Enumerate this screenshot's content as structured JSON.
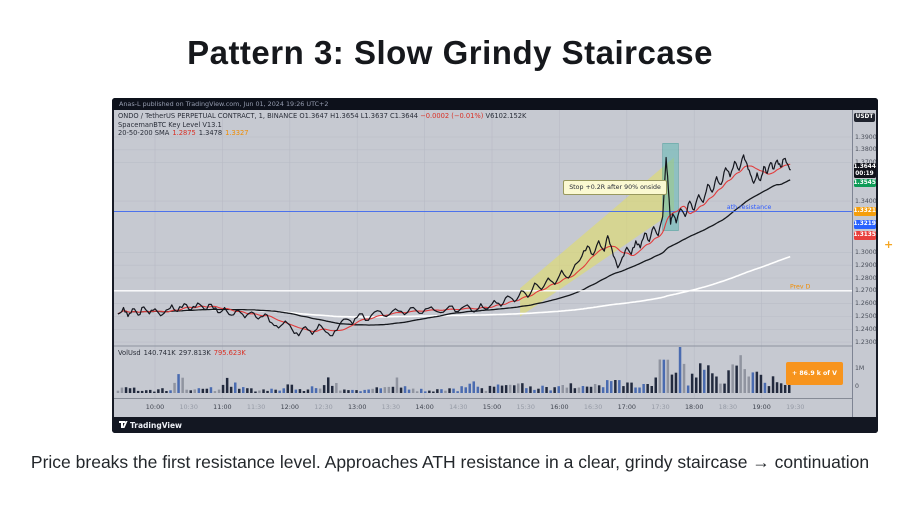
{
  "slide": {
    "title": "Pattern 3: Slow Grindy Staircase",
    "caption": "Price breaks the first resistance level. Approaches ATH resistance in a clear, grindy staircase → continuation"
  },
  "chart_header": {
    "publish_line": "Anas-L published on TradingView.com, Jun 01, 2024 19:26 UTC+2"
  },
  "legend": {
    "symbol_line": "ONDO / TetherUS PERPETUAL CONTRACT, 1, BINANCE",
    "ohlc": "O1.3647  H1.3654  L1.3637  C1.3644",
    "change": "−0.0002 (−0.01%)",
    "volume_readout": "V6102.152K",
    "indicator1": "SpacemanBTC Key Level V13.1",
    "indicator2_label": "20-50-200 SMA",
    "sma1": "1.2875",
    "sma2": "1.3478",
    "sma3": "1.3327"
  },
  "volume_legend": {
    "label": "VolUsd",
    "v1": "140.741K",
    "v2": "297.813K",
    "v3": "795.623K"
  },
  "price_scale": {
    "currency_button": "USDT",
    "ticks": [
      {
        "label": "1.3900",
        "price": 1.39
      },
      {
        "label": "1.3800",
        "price": 1.38
      },
      {
        "label": "1.3700",
        "price": 1.37
      },
      {
        "label": "1.3400",
        "price": 1.34
      },
      {
        "label": "1.3000",
        "price": 1.3
      },
      {
        "label": "1.2900",
        "price": 1.29
      },
      {
        "label": "1.2800",
        "price": 1.28
      },
      {
        "label": "1.2700",
        "price": 1.27
      },
      {
        "label": "1.2600",
        "price": 1.26
      },
      {
        "label": "1.2500",
        "price": 1.25
      },
      {
        "label": "1.2400",
        "price": 1.24
      },
      {
        "label": "1.2300",
        "price": 1.23
      }
    ],
    "badges": [
      {
        "label": "1.3644",
        "sub": "00:19",
        "price": 1.3644,
        "bg": "#11131b"
      },
      {
        "label": "1.3545",
        "price": 1.3545,
        "bg": "#0e9b57"
      },
      {
        "label": "1.3321",
        "price": 1.3321,
        "bg": "#f59e0b"
      },
      {
        "label": "1.3219",
        "price": 1.3219,
        "bg": "#2962ff"
      },
      {
        "label": "1.3135",
        "price": 1.3135,
        "bg": "#e8403d"
      }
    ],
    "volume_labels": [
      {
        "label": "1M",
        "y": 255
      },
      {
        "label": "0",
        "y": 273
      }
    ]
  },
  "time_axis": {
    "labels": [
      "10:00",
      "10:30",
      "11:00",
      "11:30",
      "12:00",
      "12:30",
      "13:00",
      "13:30",
      "14:00",
      "14:30",
      "15:00",
      "15:30",
      "16:00",
      "16:30",
      "17:00",
      "17:30",
      "18:00",
      "18:30",
      "19:00",
      "19:30"
    ]
  },
  "annotations": {
    "stop_label": "Stop +0.2R after 90% onside",
    "ath_label": "ath resistance",
    "prevd_label": "Prev D",
    "vol_box_label": "+ 86.9 k of V",
    "plus_marker": "+"
  },
  "footer": {
    "brand": "TradingView"
  },
  "colors": {
    "sma20": "#e23c3c",
    "sma50": "#15181d",
    "sma200": "#ffffff",
    "ath_line": "#3a66f0",
    "prev_day_line": "#ffffff",
    "channel_fill": "#e3df5f",
    "band_fill": "#57b8b2",
    "plot_bg": "#c6c9d1",
    "frame_bg": "#171b26"
  },
  "chart_data": {
    "type": "line",
    "title": "ONDO/USDT perpetual, 1-minute chart with 20/50/200 SMA, key levels and volume",
    "x_unit": "minutes after 10:00",
    "x_range": [
      -35,
      600
    ],
    "price_range_shown": [
      1.225,
      1.411
    ],
    "levels": {
      "ath_resistance": 1.332,
      "prev_day": 1.27
    },
    "highlight_channel": [
      [
        325,
        1.272
      ],
      [
        462,
        1.374
      ],
      [
        462,
        1.332
      ],
      [
        325,
        1.25
      ]
    ],
    "highlight_band": {
      "x0": 452,
      "x1": 466,
      "p_top": 1.385,
      "p_bottom": 1.317
    },
    "ath_label_x_min": 509,
    "price_points": [
      [
        -33,
        1.252
      ],
      [
        -28,
        1.257
      ],
      [
        -24,
        1.25
      ],
      [
        -20,
        1.256
      ],
      [
        -15,
        1.251
      ],
      [
        -10,
        1.2575
      ],
      [
        -5,
        1.252
      ],
      [
        0,
        1.256
      ],
      [
        5,
        1.2505
      ],
      [
        10,
        1.255
      ],
      [
        15,
        1.259
      ],
      [
        20,
        1.254
      ],
      [
        26,
        1.26
      ],
      [
        32,
        1.255
      ],
      [
        38,
        1.2605
      ],
      [
        44,
        1.2555
      ],
      [
        50,
        1.2595
      ],
      [
        56,
        1.253
      ],
      [
        62,
        1.257
      ],
      [
        68,
        1.251
      ],
      [
        74,
        1.255
      ],
      [
        80,
        1.249
      ],
      [
        86,
        1.2535
      ],
      [
        92,
        1.248
      ],
      [
        98,
        1.252
      ],
      [
        104,
        1.245
      ],
      [
        110,
        1.241
      ],
      [
        116,
        1.2465
      ],
      [
        122,
        1.24
      ],
      [
        128,
        1.235
      ],
      [
        134,
        1.242
      ],
      [
        140,
        1.236
      ],
      [
        146,
        1.244
      ],
      [
        152,
        1.238
      ],
      [
        158,
        1.235
      ],
      [
        164,
        1.243
      ],
      [
        170,
        1.248
      ],
      [
        176,
        1.244
      ],
      [
        182,
        1.252
      ],
      [
        190,
        1.247
      ],
      [
        198,
        1.2545
      ],
      [
        206,
        1.25
      ],
      [
        214,
        1.256
      ],
      [
        222,
        1.2515
      ],
      [
        230,
        1.257
      ],
      [
        238,
        1.2525
      ],
      [
        246,
        1.2575
      ],
      [
        254,
        1.253
      ],
      [
        262,
        1.258
      ],
      [
        270,
        1.254
      ],
      [
        278,
        1.259
      ],
      [
        284,
        1.2535
      ],
      [
        290,
        1.26
      ],
      [
        296,
        1.256
      ],
      [
        302,
        1.2625
      ],
      [
        308,
        1.258
      ],
      [
        314,
        1.266
      ],
      [
        320,
        1.2615
      ],
      [
        326,
        1.27
      ],
      [
        332,
        1.265
      ],
      [
        338,
        1.276
      ],
      [
        344,
        1.271
      ],
      [
        350,
        1.28
      ],
      [
        356,
        1.275
      ],
      [
        362,
        1.286
      ],
      [
        368,
        1.28
      ],
      [
        374,
        1.2905
      ],
      [
        380,
        1.297
      ],
      [
        385,
        1.305
      ],
      [
        390,
        1.298
      ],
      [
        395,
        1.309
      ],
      [
        400,
        1.301
      ],
      [
        403,
        1.313
      ],
      [
        406,
        1.305
      ],
      [
        409,
        1.296
      ],
      [
        412,
        1.288
      ],
      [
        416,
        1.296
      ],
      [
        420,
        1.304
      ],
      [
        424,
        1.2985
      ],
      [
        428,
        1.309
      ],
      [
        432,
        1.3035
      ],
      [
        436,
        1.315
      ],
      [
        440,
        1.3085
      ],
      [
        444,
        1.32
      ],
      [
        448,
        1.313
      ],
      [
        452,
        1.328
      ],
      [
        455,
        1.374
      ],
      [
        457,
        1.35
      ],
      [
        459,
        1.322
      ],
      [
        461,
        1.33
      ],
      [
        464,
        1.323
      ],
      [
        468,
        1.334
      ],
      [
        472,
        1.328
      ],
      [
        476,
        1.34
      ],
      [
        480,
        1.333
      ],
      [
        484,
        1.345
      ],
      [
        488,
        1.339
      ],
      [
        492,
        1.353
      ],
      [
        496,
        1.347
      ],
      [
        500,
        1.359
      ],
      [
        504,
        1.353
      ],
      [
        508,
        1.366
      ],
      [
        512,
        1.359
      ],
      [
        516,
        1.371
      ],
      [
        520,
        1.364
      ],
      [
        524,
        1.376
      ],
      [
        527,
        1.369
      ],
      [
        530,
        1.361
      ],
      [
        533,
        1.354
      ],
      [
        536,
        1.362
      ],
      [
        539,
        1.356
      ],
      [
        542,
        1.367
      ],
      [
        545,
        1.3615
      ],
      [
        548,
        1.37
      ],
      [
        551,
        1.365
      ],
      [
        554,
        1.372
      ],
      [
        557,
        1.3665
      ],
      [
        560,
        1.373
      ],
      [
        563,
        1.369
      ],
      [
        566,
        1.3644
      ]
    ],
    "volume_anchors": [
      [
        -33,
        0.3
      ],
      [
        0,
        0.2
      ],
      [
        15,
        0.35
      ],
      [
        22,
        1.3
      ],
      [
        30,
        0.3
      ],
      [
        45,
        0.25
      ],
      [
        60,
        0.35
      ],
      [
        67,
        1.0
      ],
      [
        75,
        0.3
      ],
      [
        90,
        0.2
      ],
      [
        105,
        0.3
      ],
      [
        120,
        0.45
      ],
      [
        135,
        0.3
      ],
      [
        150,
        0.4
      ],
      [
        156,
        1.1
      ],
      [
        165,
        0.3
      ],
      [
        180,
        0.25
      ],
      [
        195,
        0.3
      ],
      [
        210,
        0.35
      ],
      [
        214,
        0.8
      ],
      [
        225,
        0.25
      ],
      [
        240,
        0.2
      ],
      [
        255,
        0.25
      ],
      [
        270,
        0.25
      ],
      [
        280,
        0.9
      ],
      [
        290,
        0.3
      ],
      [
        300,
        0.35
      ],
      [
        315,
        0.45
      ],
      [
        330,
        0.5
      ],
      [
        345,
        0.4
      ],
      [
        360,
        0.45
      ],
      [
        375,
        0.5
      ],
      [
        390,
        0.55
      ],
      [
        405,
        0.6
      ],
      [
        420,
        0.65
      ],
      [
        432,
        0.9
      ],
      [
        440,
        1.0
      ],
      [
        450,
        1.6
      ],
      [
        457,
        2.9
      ],
      [
        462,
        2.0
      ],
      [
        467,
        2.3
      ],
      [
        472,
        1.3
      ],
      [
        480,
        1.1
      ],
      [
        486,
        1.7
      ],
      [
        492,
        1.4
      ],
      [
        500,
        1.2
      ],
      [
        506,
        1.5
      ],
      [
        512,
        1.3
      ],
      [
        520,
        1.9
      ],
      [
        527,
        2.5
      ],
      [
        532,
        1.4
      ],
      [
        538,
        1.0
      ],
      [
        545,
        0.9
      ],
      [
        552,
        0.8
      ],
      [
        560,
        0.7
      ],
      [
        566,
        0.6
      ]
    ],
    "volume_unit": "millions",
    "time_labels": [
      "10:00",
      "10:30",
      "11:00",
      "11:30",
      "12:00",
      "12:30",
      "13:00",
      "13:30",
      "14:00",
      "14:30",
      "15:00",
      "15:30",
      "16:00",
      "16:30",
      "17:00",
      "17:30",
      "18:00",
      "18:30",
      "19:00",
      "19:30"
    ]
  }
}
